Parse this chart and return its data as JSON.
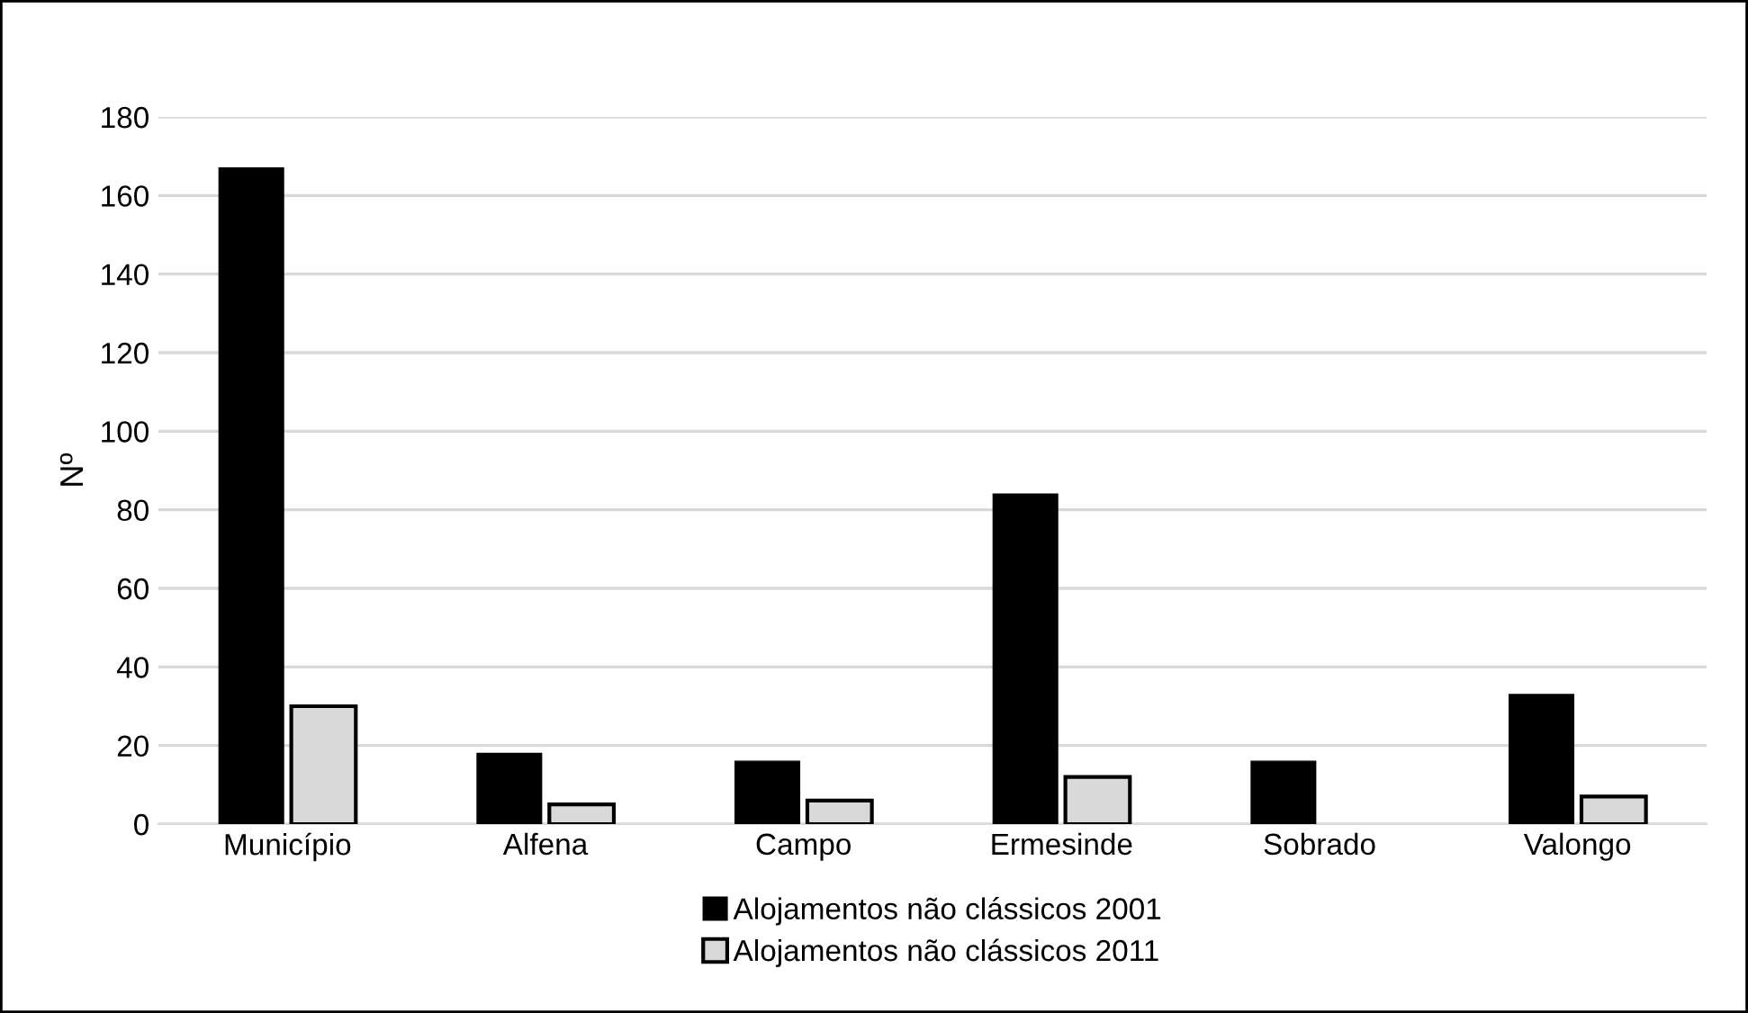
{
  "chart_data": {
    "type": "bar",
    "ylabel": "Nº",
    "categories": [
      "Município",
      "Alfena",
      "Campo",
      "Ermesinde",
      "Sobrado",
      "Valongo"
    ],
    "series": [
      {
        "name": "Alojamentos não clássicos 2001",
        "color": "#000000",
        "values": [
          167,
          18,
          16,
          84,
          16,
          33
        ]
      },
      {
        "name": "Alojamentos não clássicos 2011",
        "color": "#d9d9d9",
        "values": [
          30,
          5,
          6,
          12,
          null,
          7
        ]
      }
    ],
    "ylim": [
      0,
      180
    ],
    "yticks": [
      0,
      20,
      40,
      60,
      80,
      100,
      120,
      140,
      160,
      180
    ],
    "grid": "y",
    "legend": "bottom"
  }
}
